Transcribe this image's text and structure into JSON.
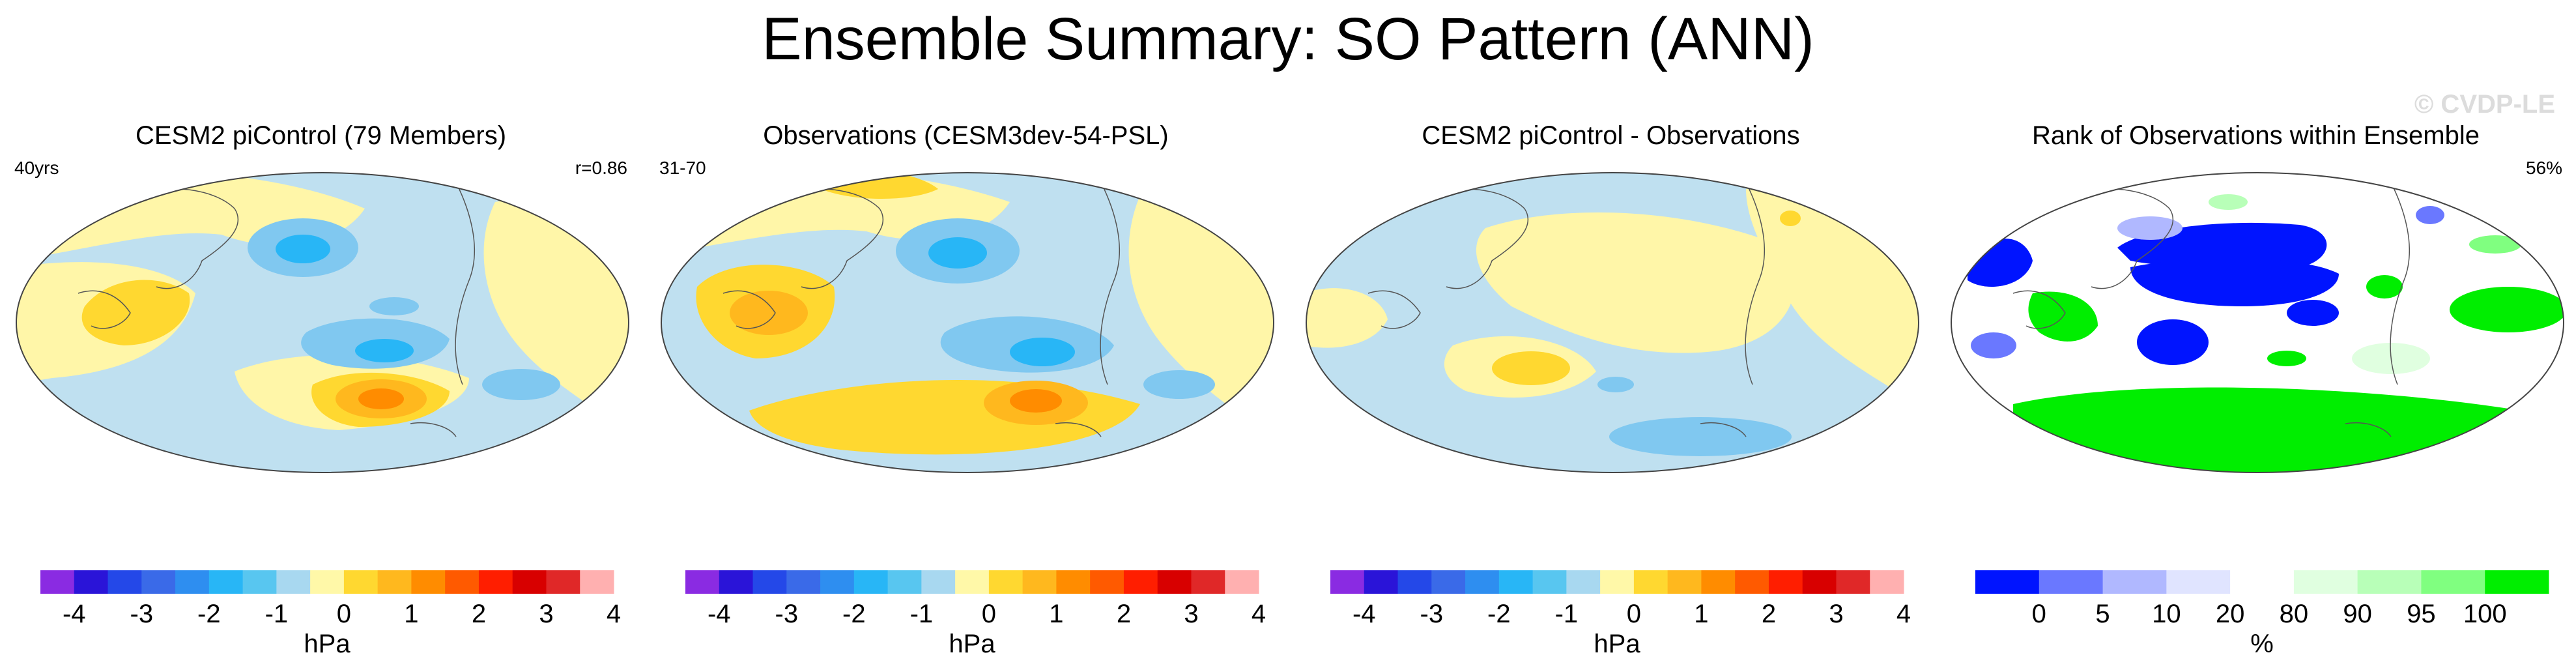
{
  "title": "Ensemble Summary: SO Pattern (ANN)",
  "watermark": "© CVDP-LE",
  "colors": {
    "hpa_scale": [
      "#8a2be2",
      "#2a14d8",
      "#2448e8",
      "#3a6ae8",
      "#2e8ef0",
      "#28b6f6",
      "#58c6f0",
      "#a8d8f0",
      "#fff8a8",
      "#ffd830",
      "#ffb81e",
      "#ff8c00",
      "#ff5a00",
      "#ff1e00",
      "#d80000",
      "#e02828",
      "#ffb0b0"
    ],
    "rank_scale": [
      "#0014ff",
      "#6a78ff",
      "#b0b8ff",
      "#e0e4ff",
      "#ffffff",
      "#e0ffe0",
      "#b8ffb8",
      "#80ff80",
      "#00ee00"
    ],
    "ocean_bg": "#bfe0f0",
    "land_bg": "#fff6a8"
  },
  "panels": [
    {
      "title": "CESM2 piControl (79 Members)",
      "left_note": "40yrs",
      "right_note": "r=0.86",
      "map_type": "hpa",
      "colorbar": {
        "type": "hpa",
        "ticks": [
          "-4",
          "-3",
          "-2",
          "-1",
          "0",
          "1",
          "2",
          "3",
          "4"
        ],
        "unit": "hPa"
      }
    },
    {
      "title": "Observations (CESM3dev-54-PSL)",
      "left_note": "31-70",
      "right_note": "",
      "map_type": "hpa",
      "colorbar": {
        "type": "hpa",
        "ticks": [
          "-4",
          "-3",
          "-2",
          "-1",
          "0",
          "1",
          "2",
          "3",
          "4"
        ],
        "unit": "hPa"
      }
    },
    {
      "title": "CESM2 piControl - Observations",
      "left_note": "",
      "right_note": "",
      "map_type": "hpa-diff",
      "colorbar": {
        "type": "hpa",
        "ticks": [
          "-4",
          "-3",
          "-2",
          "-1",
          "0",
          "1",
          "2",
          "3",
          "4"
        ],
        "unit": "hPa"
      }
    },
    {
      "title": "Rank of Observations within Ensemble",
      "left_note": "",
      "right_note": "56%",
      "map_type": "rank",
      "colorbar": {
        "type": "rank",
        "ticks": [
          "0",
          "5",
          "10",
          "20",
          "80",
          "90",
          "95",
          "100"
        ],
        "unit": "%"
      }
    }
  ]
}
